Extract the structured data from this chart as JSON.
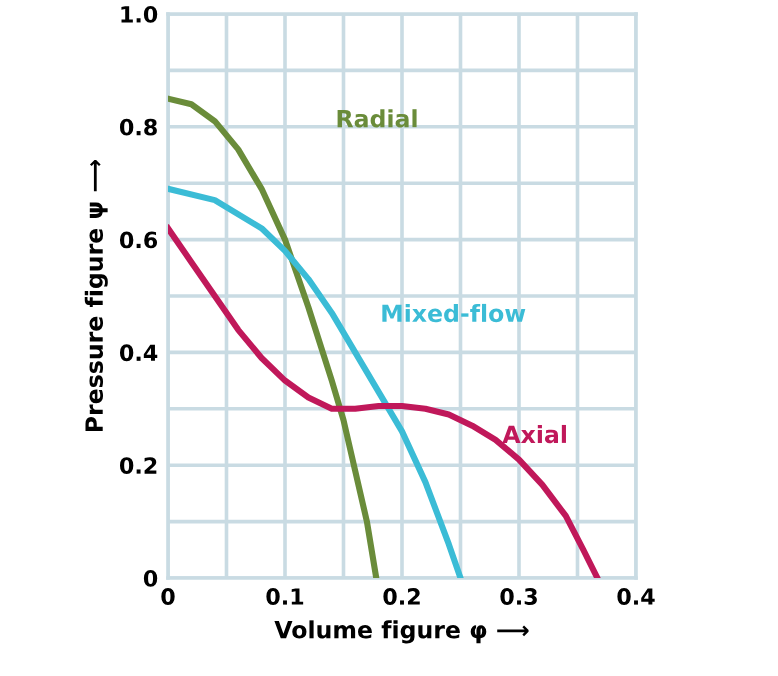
{
  "chart_data": {
    "type": "line",
    "xlabel": "Volume figure φ ⟶",
    "ylabel": "Pressure figure ψ ⟶",
    "xlim": [
      0,
      0.4
    ],
    "ylim": [
      0,
      1.0
    ],
    "xticks": [
      0,
      {
        "value": 0.05,
        "label": null
      },
      0.1,
      {
        "value": 0.15,
        "label": null
      },
      0.2,
      {
        "value": 0.25,
        "label": null
      },
      0.3,
      {
        "value": 0.35,
        "label": null
      },
      0.4
    ],
    "yticks": [
      0,
      {
        "value": 0.1,
        "label": null
      },
      0.2,
      {
        "value": 0.3,
        "label": null
      },
      0.4,
      {
        "value": 0.5,
        "label": null
      },
      0.6,
      {
        "value": 0.7,
        "label": null
      },
      0.8,
      {
        "value": 0.9,
        "label": null
      },
      {
        "value": 1.0,
        "label": "1.0"
      }
    ],
    "grid": true,
    "marker": "none",
    "line_style": "solid",
    "legend": false,
    "series": [
      {
        "name": "Radial",
        "color": "#6a8c3a",
        "x": [
          0,
          0.02,
          0.04,
          0.06,
          0.08,
          0.1,
          0.12,
          0.14,
          0.15,
          0.16,
          0.17,
          0.178
        ],
        "values": [
          0.85,
          0.84,
          0.81,
          0.76,
          0.69,
          0.6,
          0.48,
          0.35,
          0.28,
          0.19,
          0.1,
          0
        ]
      },
      {
        "name": "Mixed-flow",
        "color": "#3bbcd6",
        "x": [
          0,
          0.04,
          0.08,
          0.1,
          0.12,
          0.14,
          0.16,
          0.18,
          0.2,
          0.22,
          0.24,
          0.25
        ],
        "values": [
          0.69,
          0.67,
          0.62,
          0.58,
          0.53,
          0.47,
          0.4,
          0.33,
          0.26,
          0.17,
          0.06,
          0
        ]
      },
      {
        "name": "Axial",
        "color": "#c0185a",
        "x": [
          0,
          0.02,
          0.04,
          0.06,
          0.08,
          0.1,
          0.12,
          0.14,
          0.16,
          0.18,
          0.2,
          0.22,
          0.24,
          0.26,
          0.28,
          0.3,
          0.32,
          0.34,
          0.355,
          0.367
        ],
        "values": [
          0.62,
          0.56,
          0.5,
          0.44,
          0.39,
          0.35,
          0.32,
          0.3,
          0.3,
          0.305,
          0.305,
          0.3,
          0.29,
          0.27,
          0.245,
          0.21,
          0.165,
          0.11,
          0.05,
          0
        ]
      }
    ]
  }
}
